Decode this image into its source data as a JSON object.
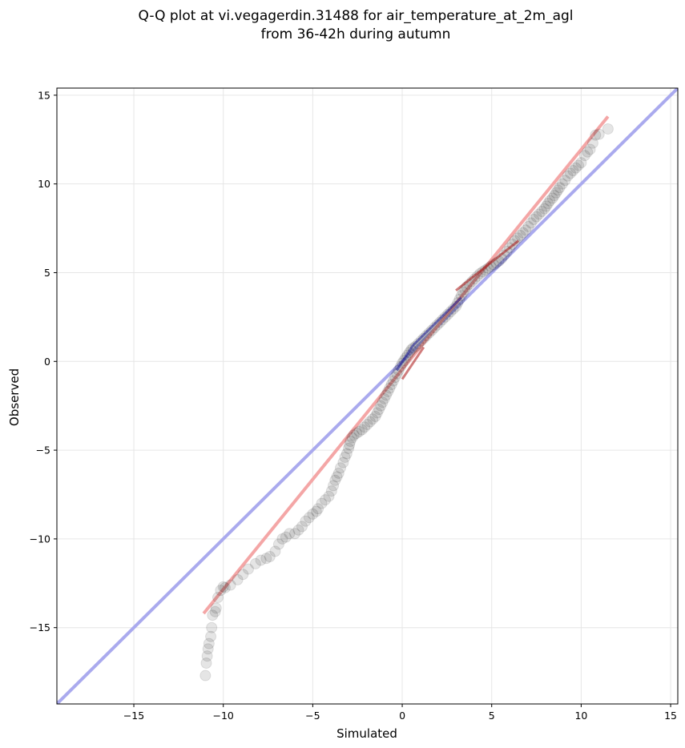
{
  "chart_data": {
    "type": "scatter",
    "title": [
      "Q-Q plot at vi.vegagerdin.31488 for air_temperature_at_2m_agl",
      "from 36-42h during autumn"
    ],
    "xlabel": "Simulated",
    "ylabel": "Observed",
    "xlim": [
      -19.3,
      15.4
    ],
    "ylim": [
      -19.3,
      15.4
    ],
    "grid": true,
    "xticks": [
      {
        "value": -15,
        "label": "−15"
      },
      {
        "value": -10,
        "label": "−10"
      },
      {
        "value": -5,
        "label": "−5"
      },
      {
        "value": 0,
        "label": "0"
      },
      {
        "value": 5,
        "label": "5"
      },
      {
        "value": 10,
        "label": "10"
      },
      {
        "value": 15,
        "label": "15"
      }
    ],
    "yticks": [
      {
        "value": -15,
        "label": "−15"
      },
      {
        "value": -10,
        "label": "−10"
      },
      {
        "value": -5,
        "label": "−5"
      },
      {
        "value": 0,
        "label": "0"
      },
      {
        "value": 5,
        "label": "5"
      },
      {
        "value": 10,
        "label": "10"
      },
      {
        "value": 15,
        "label": "15"
      }
    ],
    "identity_line": {
      "x": [
        -19.3,
        15.4
      ],
      "y": [
        -19.3,
        15.4
      ],
      "color": "#aaaaee"
    },
    "fit_line": {
      "x": [
        -11.1,
        11.5
      ],
      "y": [
        -14.2,
        13.8
      ],
      "color": "#f4a6a6"
    },
    "central_segments": [
      {
        "x": [
          -0.3,
          0.6
        ],
        "y": [
          -0.5,
          0.9
        ],
        "color": "#1a1a99"
      },
      {
        "x": [
          0.6,
          3.3
        ],
        "y": [
          0.9,
          3.6
        ],
        "color": "#1a1a99"
      },
      {
        "x": [
          0.0,
          1.2
        ],
        "y": [
          -1.0,
          0.8
        ],
        "color": "#aa1111"
      },
      {
        "x": [
          3.0,
          6.5
        ],
        "y": [
          4.0,
          6.8
        ],
        "color": "#aa1111"
      }
    ],
    "point_color": "#000000",
    "points": [
      [
        -11.0,
        -17.7
      ],
      [
        -10.95,
        -17.0
      ],
      [
        -10.9,
        -16.6
      ],
      [
        -10.85,
        -16.2
      ],
      [
        -10.8,
        -15.9
      ],
      [
        -10.7,
        -15.5
      ],
      [
        -10.65,
        -15.0
      ],
      [
        -10.6,
        -14.3
      ],
      [
        -10.45,
        -14.1
      ],
      [
        -10.4,
        -13.9
      ],
      [
        -10.3,
        -13.3
      ],
      [
        -10.15,
        -12.9
      ],
      [
        -10.0,
        -12.7
      ],
      [
        -9.9,
        -12.75
      ],
      [
        -9.6,
        -12.6
      ],
      [
        -9.2,
        -12.3
      ],
      [
        -8.9,
        -12.0
      ],
      [
        -8.6,
        -11.7
      ],
      [
        -8.2,
        -11.4
      ],
      [
        -7.9,
        -11.2
      ],
      [
        -7.6,
        -11.1
      ],
      [
        -7.4,
        -11.0
      ],
      [
        -7.1,
        -10.7
      ],
      [
        -6.9,
        -10.3
      ],
      [
        -6.7,
        -10.0
      ],
      [
        -6.5,
        -9.9
      ],
      [
        -6.3,
        -9.7
      ],
      [
        -6.0,
        -9.7
      ],
      [
        -5.8,
        -9.5
      ],
      [
        -5.6,
        -9.3
      ],
      [
        -5.4,
        -9.0
      ],
      [
        -5.2,
        -8.8
      ],
      [
        -5.0,
        -8.6
      ],
      [
        -4.8,
        -8.45
      ],
      [
        -4.7,
        -8.3
      ],
      [
        -4.5,
        -8.0
      ],
      [
        -4.3,
        -7.8
      ],
      [
        -4.1,
        -7.6
      ],
      [
        -3.95,
        -7.3
      ],
      [
        -3.85,
        -7.0
      ],
      [
        -3.75,
        -6.7
      ],
      [
        -3.65,
        -6.5
      ],
      [
        -3.55,
        -6.3
      ],
      [
        -3.45,
        -6.0
      ],
      [
        -3.3,
        -5.7
      ],
      [
        -3.2,
        -5.4
      ],
      [
        -3.1,
        -5.2
      ],
      [
        -3.0,
        -4.9
      ],
      [
        -2.95,
        -4.7
      ],
      [
        -2.9,
        -4.5
      ],
      [
        -2.8,
        -4.3
      ],
      [
        -2.7,
        -4.15
      ],
      [
        -2.55,
        -4.05
      ],
      [
        -2.4,
        -3.95
      ],
      [
        -2.25,
        -3.85
      ],
      [
        -2.1,
        -3.7
      ],
      [
        -1.95,
        -3.55
      ],
      [
        -1.8,
        -3.4
      ],
      [
        -1.65,
        -3.25
      ],
      [
        -1.5,
        -3.1
      ],
      [
        -1.4,
        -2.9
      ],
      [
        -1.3,
        -2.7
      ],
      [
        -1.2,
        -2.5
      ],
      [
        -1.1,
        -2.3
      ],
      [
        -1.0,
        -2.1
      ],
      [
        -0.9,
        -1.9
      ],
      [
        -0.8,
        -1.7
      ],
      [
        -0.7,
        -1.5
      ],
      [
        -0.6,
        -1.3
      ],
      [
        -0.5,
        -1.1
      ],
      [
        -0.4,
        -0.9
      ],
      [
        -0.3,
        -0.7
      ],
      [
        -0.2,
        -0.5
      ],
      [
        -0.1,
        -0.3
      ],
      [
        0.0,
        -0.1
      ],
      [
        0.1,
        0.05
      ],
      [
        0.2,
        0.2
      ],
      [
        0.3,
        0.35
      ],
      [
        0.4,
        0.5
      ],
      [
        0.5,
        0.65
      ],
      [
        0.6,
        0.75
      ],
      [
        0.75,
        0.85
      ],
      [
        0.9,
        1.0
      ],
      [
        1.05,
        1.15
      ],
      [
        1.2,
        1.3
      ],
      [
        1.35,
        1.45
      ],
      [
        1.5,
        1.6
      ],
      [
        1.65,
        1.75
      ],
      [
        1.8,
        1.9
      ],
      [
        1.95,
        2.05
      ],
      [
        2.1,
        2.2
      ],
      [
        2.25,
        2.35
      ],
      [
        2.4,
        2.5
      ],
      [
        2.55,
        2.65
      ],
      [
        2.7,
        2.8
      ],
      [
        2.85,
        2.95
      ],
      [
        3.0,
        3.1
      ],
      [
        3.1,
        3.3
      ],
      [
        3.2,
        3.5
      ],
      [
        3.3,
        3.7
      ],
      [
        3.4,
        3.9
      ],
      [
        3.5,
        4.05
      ],
      [
        3.6,
        4.2
      ],
      [
        3.75,
        4.35
      ],
      [
        3.9,
        4.5
      ],
      [
        4.05,
        4.65
      ],
      [
        4.2,
        4.8
      ],
      [
        4.35,
        4.95
      ],
      [
        4.5,
        5.05
      ],
      [
        4.65,
        5.15
      ],
      [
        4.8,
        5.25
      ],
      [
        4.95,
        5.35
      ],
      [
        5.1,
        5.45
      ],
      [
        5.25,
        5.55
      ],
      [
        5.4,
        5.65
      ],
      [
        5.55,
        5.8
      ],
      [
        5.7,
        6.0
      ],
      [
        5.85,
        6.2
      ],
      [
        6.0,
        6.4
      ],
      [
        6.15,
        6.6
      ],
      [
        6.3,
        6.8
      ],
      [
        6.45,
        6.95
      ],
      [
        6.6,
        7.1
      ],
      [
        6.75,
        7.25
      ],
      [
        6.9,
        7.4
      ],
      [
        7.05,
        7.6
      ],
      [
        7.2,
        7.8
      ],
      [
        7.35,
        8.0
      ],
      [
        7.5,
        8.15
      ],
      [
        7.65,
        8.3
      ],
      [
        7.8,
        8.45
      ],
      [
        7.95,
        8.6
      ],
      [
        8.05,
        8.75
      ],
      [
        8.15,
        8.9
      ],
      [
        8.25,
        9.05
      ],
      [
        8.4,
        9.2
      ],
      [
        8.5,
        9.35
      ],
      [
        8.6,
        9.5
      ],
      [
        8.7,
        9.65
      ],
      [
        8.8,
        9.8
      ],
      [
        8.95,
        10.0
      ],
      [
        9.1,
        10.2
      ],
      [
        9.25,
        10.45
      ],
      [
        9.4,
        10.6
      ],
      [
        9.55,
        10.75
      ],
      [
        9.7,
        10.9
      ],
      [
        9.85,
        11.05
      ],
      [
        10.0,
        11.2
      ],
      [
        10.2,
        11.6
      ],
      [
        10.35,
        11.8
      ],
      [
        10.5,
        11.95
      ],
      [
        10.65,
        12.3
      ],
      [
        10.8,
        12.75
      ],
      [
        11.0,
        12.8
      ],
      [
        11.5,
        13.1
      ]
    ]
  }
}
